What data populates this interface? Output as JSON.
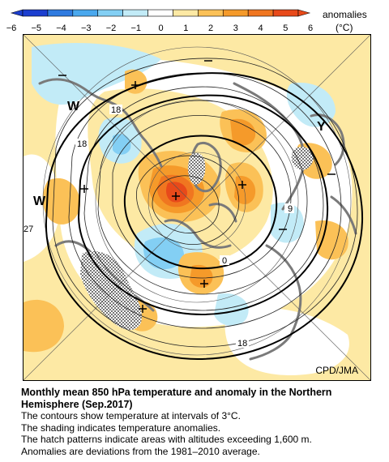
{
  "legend": {
    "title": "anomalies",
    "unit": "(°C)",
    "ticks": [
      "−6",
      "−5",
      "−4",
      "−3",
      "−2",
      "−1",
      "0",
      "1",
      "2",
      "3",
      "4",
      "5",
      "6"
    ],
    "colors": [
      "#1c3fcf",
      "#2f7be0",
      "#4aa8ee",
      "#83cff4",
      "#c2ebf7",
      "#ffffff",
      "#fde9a4",
      "#fbc157",
      "#f59a2a",
      "#f07620",
      "#e84a1a"
    ]
  },
  "map": {
    "contour_labels": [
      "18",
      "18",
      "27",
      "9",
      "0",
      "18"
    ],
    "high_low_labels": [
      "W",
      "W",
      "Y"
    ],
    "credit": "CPD/JMA"
  },
  "caption": {
    "title": "Monthly mean 850 hPa temperature and anomaly in the Northern Hemisphere (Sep.2017)",
    "line1": "The contours show temperature at intervals of 3°C.",
    "line2": "The shading indicates temperature anomalies.",
    "line3": "The hatch patterns indicate areas with altitudes exceeding 1,600 m.",
    "line4": "Anomalies are deviations from the 1981–2010 average."
  }
}
